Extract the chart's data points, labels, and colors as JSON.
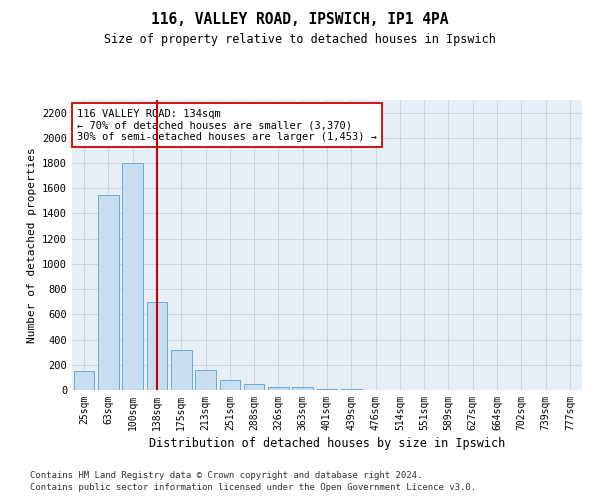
{
  "title1": "116, VALLEY ROAD, IPSWICH, IP1 4PA",
  "title2": "Size of property relative to detached houses in Ipswich",
  "xlabel": "Distribution of detached houses by size in Ipswich",
  "ylabel": "Number of detached properties",
  "categories": [
    "25sqm",
    "63sqm",
    "100sqm",
    "138sqm",
    "175sqm",
    "213sqm",
    "251sqm",
    "288sqm",
    "326sqm",
    "363sqm",
    "401sqm",
    "439sqm",
    "476sqm",
    "514sqm",
    "551sqm",
    "589sqm",
    "627sqm",
    "664sqm",
    "702sqm",
    "739sqm",
    "777sqm"
  ],
  "values": [
    150,
    1550,
    1800,
    700,
    320,
    160,
    80,
    45,
    25,
    20,
    10,
    5,
    3,
    2,
    1,
    1,
    0,
    0,
    0,
    0,
    0
  ],
  "bar_color": "#c9ddf0",
  "bar_edge_color": "#6aaad4",
  "highlight_index": 3,
  "highlight_line_color": "#cc0000",
  "annotation_text": "116 VALLEY ROAD: 134sqm\n← 70% of detached houses are smaller (3,370)\n30% of semi-detached houses are larger (1,453) →",
  "annotation_box_color": "#ffffff",
  "annotation_box_edge": "#cc0000",
  "ylim": [
    0,
    2300
  ],
  "yticks": [
    0,
    200,
    400,
    600,
    800,
    1000,
    1200,
    1400,
    1600,
    1800,
    2000,
    2200
  ],
  "grid_color": "#c8d0dc",
  "footer1": "Contains HM Land Registry data © Crown copyright and database right 2024.",
  "footer2": "Contains public sector information licensed under the Open Government Licence v3.0.",
  "bg_color": "#ffffff",
  "plot_bg_color": "#e8eef5"
}
